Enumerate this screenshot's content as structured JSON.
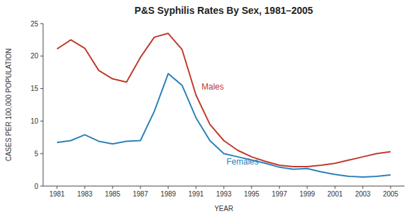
{
  "chart_data": {
    "type": "line",
    "title": "P&S Syphilis Rates By Sex, 1981–2005",
    "x_label": "YEAR",
    "y_label": "CASES PER 100,000 POPULATION",
    "x": [
      1981,
      1982,
      1983,
      1984,
      1985,
      1986,
      1987,
      1988,
      1989,
      1990,
      1991,
      1992,
      1993,
      1994,
      1995,
      1996,
      1997,
      1998,
      1999,
      2000,
      2001,
      2002,
      2003,
      2004,
      2005
    ],
    "series": [
      {
        "name": "Males",
        "color": "#c0392b",
        "values": [
          21.1,
          22.5,
          21.2,
          17.8,
          16.5,
          16.0,
          19.8,
          22.9,
          23.5,
          21.0,
          14.0,
          9.5,
          7.0,
          5.5,
          4.5,
          3.8,
          3.2,
          3.0,
          3.0,
          3.2,
          3.5,
          4.0,
          4.5,
          5.0,
          5.3
        ]
      },
      {
        "name": "Females",
        "color": "#2980b9",
        "values": [
          6.7,
          7.0,
          7.9,
          6.9,
          6.5,
          6.9,
          7.0,
          11.5,
          17.3,
          15.5,
          10.5,
          7.0,
          5.0,
          4.5,
          4.0,
          3.5,
          2.9,
          2.6,
          2.7,
          2.2,
          1.8,
          1.5,
          1.4,
          1.5,
          1.7
        ]
      }
    ],
    "xlim": [
      1980,
      2006
    ],
    "xticks": [
      1981,
      1983,
      1985,
      1987,
      1989,
      1991,
      1993,
      1995,
      1997,
      1999,
      2001,
      2003,
      2005
    ],
    "ylim": [
      0,
      25
    ],
    "yticks": [
      0,
      5,
      10,
      15,
      20,
      25
    ],
    "grid": false
  }
}
